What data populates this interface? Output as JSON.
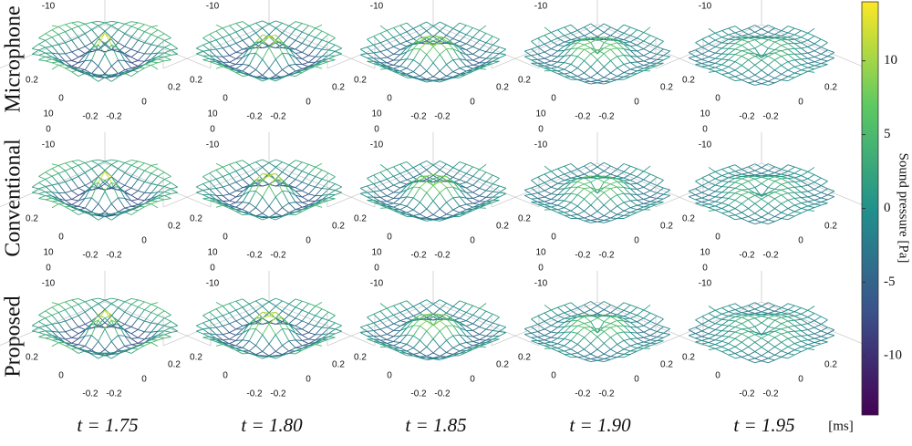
{
  "rows": [
    "Microphone",
    "Conventional",
    "Proposed"
  ],
  "columns": [
    "t = 1.75",
    "t = 1.80",
    "t = 1.85",
    "t = 1.90",
    "t = 1.95"
  ],
  "time_unit": "[ms]",
  "panel_ticks": {
    "z": [
      "10",
      "0",
      "-10"
    ],
    "y": [
      "0.2",
      "0",
      "-0.2"
    ],
    "x": [
      "-0.2",
      "0",
      "0.2"
    ]
  },
  "colorbar": {
    "label": "Sound pressure [Pa]",
    "lim": [
      -14,
      14
    ],
    "ticks": [
      -10,
      -5,
      0,
      5,
      10
    ],
    "colors": [
      "#440154",
      "#3b528b",
      "#21918c",
      "#5ec962",
      "#fde725"
    ]
  }
}
